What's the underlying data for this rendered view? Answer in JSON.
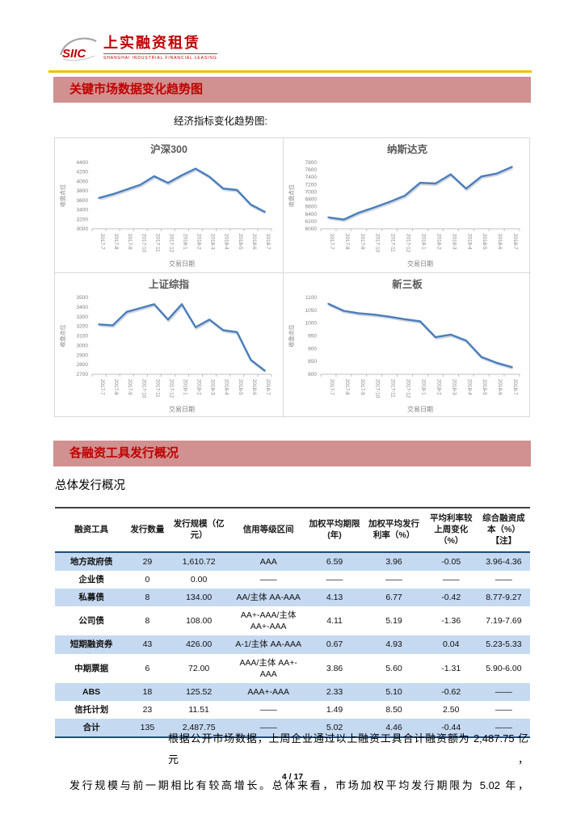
{
  "logo": {
    "mark": "SIIC",
    "name_cn": "上实融资租赁",
    "name_en": "SHANGHAI INDUSTRIAL FINANCIAL LEASING"
  },
  "banners": {
    "market_trends": "关键市场数据变化趋势图",
    "financing_overview": "各融资工具发行概况"
  },
  "charts_intro": "经济指标变化趋势图:",
  "chart_data": [
    {
      "id": "hs300",
      "type": "line",
      "title": "沪深300",
      "ylabel": "收盘点位",
      "xlabel": "交易日期",
      "categories": [
        "2017-7",
        "2017-8",
        "2017-9",
        "2017-10",
        "2017-11",
        "2017-12",
        "2018-1",
        "2018-2",
        "2018-3",
        "2018-4",
        "2018-5",
        "2018-6",
        "2018-7"
      ],
      "values": [
        3650,
        3730,
        3830,
        3930,
        4110,
        3970,
        4130,
        4270,
        4100,
        3850,
        3820,
        3510,
        3360
      ],
      "ylim": [
        3000,
        4400
      ],
      "ytick": 200,
      "grid": false,
      "legend": "none"
    },
    {
      "id": "nasdaq",
      "type": "line",
      "title": "纳斯达克",
      "ylabel": "收盘点位",
      "xlabel": "交易日期",
      "categories": [
        "2017-7",
        "2017-8",
        "2017-9",
        "2017-10",
        "2017-11",
        "2017-12",
        "2018-1",
        "2018-2",
        "2018-3",
        "2018-4",
        "2018-5",
        "2018-6",
        "2018-7"
      ],
      "values": [
        6310,
        6250,
        6440,
        6580,
        6730,
        6900,
        7250,
        7230,
        7480,
        7090,
        7420,
        7500,
        7680
      ],
      "ylim": [
        6000,
        7800
      ],
      "ytick": 200,
      "grid": false,
      "legend": "none"
    },
    {
      "id": "sse",
      "type": "line",
      "title": "上证综指",
      "ylabel": "收盘点位",
      "xlabel": "交易日期",
      "categories": [
        "2017-7",
        "2017-8",
        "2017-9",
        "2017-10",
        "2017-11",
        "2017-12",
        "2018-1",
        "2018-2",
        "2018-3",
        "2018-4",
        "2018-5",
        "2018-6",
        "2018-7"
      ],
      "values": [
        3220,
        3210,
        3350,
        3390,
        3430,
        3270,
        3430,
        3190,
        3270,
        3160,
        3140,
        2850,
        2740
      ],
      "ylim": [
        2700,
        3500
      ],
      "ytick": 100,
      "grid": false,
      "legend": "none"
    },
    {
      "id": "neeq",
      "type": "line",
      "title": "新三板",
      "ylabel": "收盘点位",
      "xlabel": "交易日期",
      "categories": [
        "2017-7",
        "2017-8",
        "2017-9",
        "2017-10",
        "2017-11",
        "2017-12",
        "2018-1",
        "2018-2",
        "2018-3",
        "2018-4",
        "2018-5",
        "2018-6",
        "2018-7"
      ],
      "values": [
        1075,
        1048,
        1038,
        1033,
        1025,
        1015,
        1007,
        945,
        955,
        932,
        868,
        845,
        828
      ],
      "ylim": [
        800,
        1100
      ],
      "ytick": 50,
      "grid": false,
      "legend": "none"
    }
  ],
  "table_section": {
    "title": "总体发行概况"
  },
  "table": {
    "headers": [
      "融资工具",
      "发行数量",
      "发行规模（亿元）",
      "信用等级区间",
      "加权平均期限(年)",
      "加权平均发行利率（%）",
      "平均利率较上周变化（%）",
      "综合融资成本（%）【注】"
    ],
    "rows": [
      [
        "地方政府债",
        "29",
        "1,610.72",
        "AAA",
        "6.59",
        "3.96",
        "-0.05",
        "3.96-4.36"
      ],
      [
        "企业债",
        "0",
        "0.00",
        "——",
        "——",
        "——",
        "——",
        "——"
      ],
      [
        "私募债",
        "8",
        "134.00",
        "AA/主体 AA-AAA",
        "4.13",
        "6.77",
        "-0.42",
        "8.77-9.27"
      ],
      [
        "公司债",
        "8",
        "108.00",
        "AA+-AAA/主体 AA+-AAA",
        "4.11",
        "5.19",
        "-1.36",
        "7.19-7.69"
      ],
      [
        "短期融资券",
        "43",
        "426.00",
        "A-1/主体 AA-AAA",
        "0.67",
        "4.93",
        "0.04",
        "5.23-5.33"
      ],
      [
        "中期票据",
        "6",
        "72.00",
        "AAA/主体 AA+-AAA",
        "3.86",
        "5.60",
        "-1.31",
        "5.90-6.00"
      ],
      [
        "ABS",
        "18",
        "125.52",
        "AAA+-AAA",
        "2.33",
        "5.10",
        "-0.62",
        "——"
      ],
      [
        "信托计划",
        "23",
        "11.51",
        "——",
        "1.49",
        "8.50",
        "2.50",
        "——"
      ],
      [
        "合计",
        "135",
        "2,487.75",
        "——",
        "5.02",
        "4.46",
        "-0.44",
        "——"
      ]
    ]
  },
  "footer": {
    "paragraph_line1": "根据公开市场数据，上周企业通过以上融资工具合计融资额为 2,487.75 亿元，",
    "paragraph_line2": "发行规模与前一期相比有较高增长。总体来看，市场加权平均发行期限为 5.02 年，",
    "page_number": "4 / 17"
  },
  "colors": {
    "accent_red": "#C00000",
    "banner_bg": "#D09190",
    "gold_rule": "#F2C100",
    "stripe_blue": "#C5D9F1",
    "chart_line": "#4A7EBB",
    "table_border_navy": "#1F4E79",
    "table_border_top": "#404040",
    "chart_text": "#595959",
    "axis_text": "#808080"
  }
}
